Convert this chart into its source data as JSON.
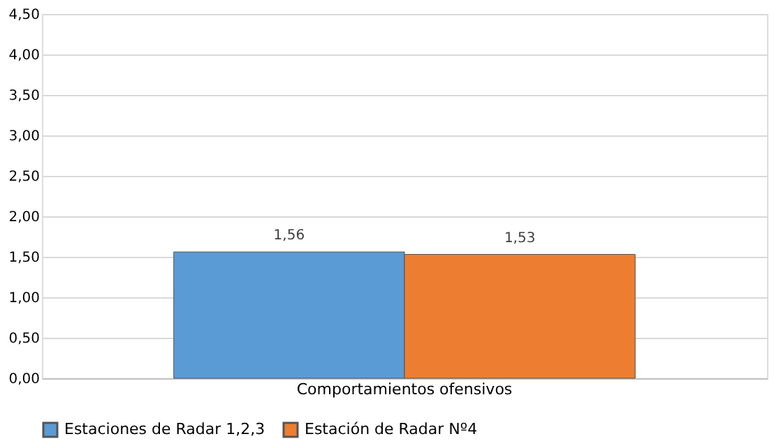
{
  "chart_data": {
    "type": "bar",
    "categories": [
      "Comportamientos ofensivos"
    ],
    "series": [
      {
        "name": "Estaciones de Radar 1,2,3",
        "color": "#5b9bd5",
        "values": [
          1.56
        ],
        "value_labels": [
          "1,56"
        ]
      },
      {
        "name": "Estación de Radar Nº4",
        "color": "#ed7d31",
        "values": [
          1.53
        ],
        "value_labels": [
          "1,53"
        ]
      }
    ],
    "ylim": [
      0,
      4.5
    ],
    "yticks": [
      {
        "value": 0,
        "label": "0,00"
      },
      {
        "value": 0.5,
        "label": "0,50"
      },
      {
        "value": 1,
        "label": "1,00"
      },
      {
        "value": 1.5,
        "label": "1,50"
      },
      {
        "value": 2,
        "label": "2,00"
      },
      {
        "value": 2.5,
        "label": "2,50"
      },
      {
        "value": 3,
        "label": "3,00"
      },
      {
        "value": 3.5,
        "label": "3,50"
      },
      {
        "value": 4,
        "label": "4,00"
      },
      {
        "value": 4.5,
        "label": "4,50"
      }
    ],
    "grid": "y",
    "legend": "bottom"
  }
}
